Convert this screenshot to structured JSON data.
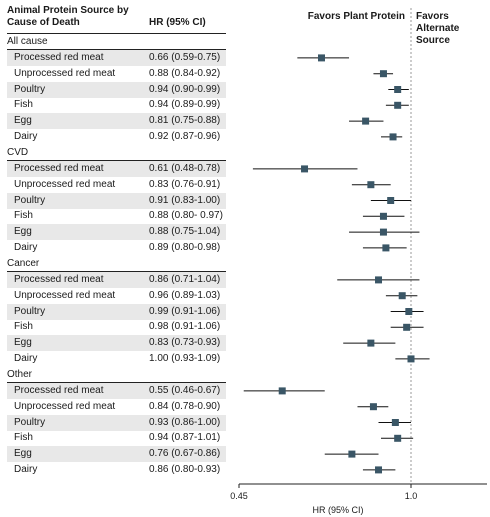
{
  "header": {
    "source_col": "Animal Protein Source by Cause of Death",
    "hr_col": "HR (95% CI)",
    "favors_plant": "Favors Plant Protein",
    "favors_alternate": "Favors Alternate Source"
  },
  "chart_data": {
    "type": "forest",
    "xlabel": "HR (95% CI)",
    "xscale": "log",
    "xlim": [
      0.45,
      1.2
    ],
    "xticks": [
      "0.45",
      "1.0"
    ],
    "reference_line": 1.0,
    "groups": [
      {
        "name": "All cause",
        "rows": [
          {
            "label": "Processed red meat",
            "hr_text": "0.66 (0.59-0.75)",
            "hr": 0.66,
            "lo": 0.59,
            "hi": 0.75
          },
          {
            "label": "Unprocessed red meat",
            "hr_text": "0.88 (0.84-0.92)",
            "hr": 0.88,
            "lo": 0.84,
            "hi": 0.92
          },
          {
            "label": "Poultry",
            "hr_text": "0.94 (0.90-0.99)",
            "hr": 0.94,
            "lo": 0.9,
            "hi": 0.99
          },
          {
            "label": "Fish",
            "hr_text": "0.94 (0.89-0.99)",
            "hr": 0.94,
            "lo": 0.89,
            "hi": 0.99
          },
          {
            "label": "Egg",
            "hr_text": "0.81 (0.75-0.88)",
            "hr": 0.81,
            "lo": 0.75,
            "hi": 0.88
          },
          {
            "label": "Dairy",
            "hr_text": "0.92 (0.87-0.96)",
            "hr": 0.92,
            "lo": 0.87,
            "hi": 0.96
          }
        ]
      },
      {
        "name": "CVD",
        "rows": [
          {
            "label": "Processed red meat",
            "hr_text": "0.61 (0.48-0.78)",
            "hr": 0.61,
            "lo": 0.48,
            "hi": 0.78
          },
          {
            "label": "Unprocessed red meat",
            "hr_text": "0.83 (0.76-0.91)",
            "hr": 0.83,
            "lo": 0.76,
            "hi": 0.91
          },
          {
            "label": "Poultry",
            "hr_text": "0.91 (0.83-1.00)",
            "hr": 0.91,
            "lo": 0.83,
            "hi": 1.0
          },
          {
            "label": "Fish",
            "hr_text": "0.88 (0.80- 0.97)",
            "hr": 0.88,
            "lo": 0.8,
            "hi": 0.97
          },
          {
            "label": "Egg",
            "hr_text": "0.88 (0.75-1.04)",
            "hr": 0.88,
            "lo": 0.75,
            "hi": 1.04
          },
          {
            "label": "Dairy",
            "hr_text": "0.89 (0.80-0.98)",
            "hr": 0.89,
            "lo": 0.8,
            "hi": 0.98
          }
        ]
      },
      {
        "name": "Cancer",
        "rows": [
          {
            "label": "Processed red meat",
            "hr_text": "0.86 (0.71-1.04)",
            "hr": 0.86,
            "lo": 0.71,
            "hi": 1.04
          },
          {
            "label": "Unprocessed red meat",
            "hr_text": "0.96 (0.89-1.03)",
            "hr": 0.96,
            "lo": 0.89,
            "hi": 1.03
          },
          {
            "label": "Poultry",
            "hr_text": "0.99 (0.91-1.06)",
            "hr": 0.99,
            "lo": 0.91,
            "hi": 1.06
          },
          {
            "label": "Fish",
            "hr_text": "0.98 (0.91-1.06)",
            "hr": 0.98,
            "lo": 0.91,
            "hi": 1.06
          },
          {
            "label": "Egg",
            "hr_text": "0.83 (0.73-0.93)",
            "hr": 0.83,
            "lo": 0.73,
            "hi": 0.93
          },
          {
            "label": "Dairy",
            "hr_text": "1.00 (0.93-1.09)",
            "hr": 1.0,
            "lo": 0.93,
            "hi": 1.09
          }
        ]
      },
      {
        "name": "Other",
        "rows": [
          {
            "label": "Processed red meat",
            "hr_text": "0.55 (0.46-0.67)",
            "hr": 0.55,
            "lo": 0.46,
            "hi": 0.67
          },
          {
            "label": "Unprocessed red meat",
            "hr_text": "0.84 (0.78-0.90)",
            "hr": 0.84,
            "lo": 0.78,
            "hi": 0.9
          },
          {
            "label": "Poultry",
            "hr_text": "0.93 (0.86-1.00)",
            "hr": 0.93,
            "lo": 0.86,
            "hi": 1.0
          },
          {
            "label": "Fish",
            "hr_text": "0.94 (0.87-1.01)",
            "hr": 0.94,
            "lo": 0.87,
            "hi": 1.01
          },
          {
            "label": "Egg",
            "hr_text": "0.76 (0.67-0.86)",
            "hr": 0.76,
            "lo": 0.67,
            "hi": 0.86
          },
          {
            "label": "Dairy",
            "hr_text": "0.86 (0.80-0.93)",
            "hr": 0.86,
            "lo": 0.8,
            "hi": 0.93
          }
        ]
      }
    ],
    "colors": {
      "marker": "#3a5666",
      "ci_line": "#111111",
      "shade": "#e8e8e8",
      "reference": "#999999"
    }
  }
}
